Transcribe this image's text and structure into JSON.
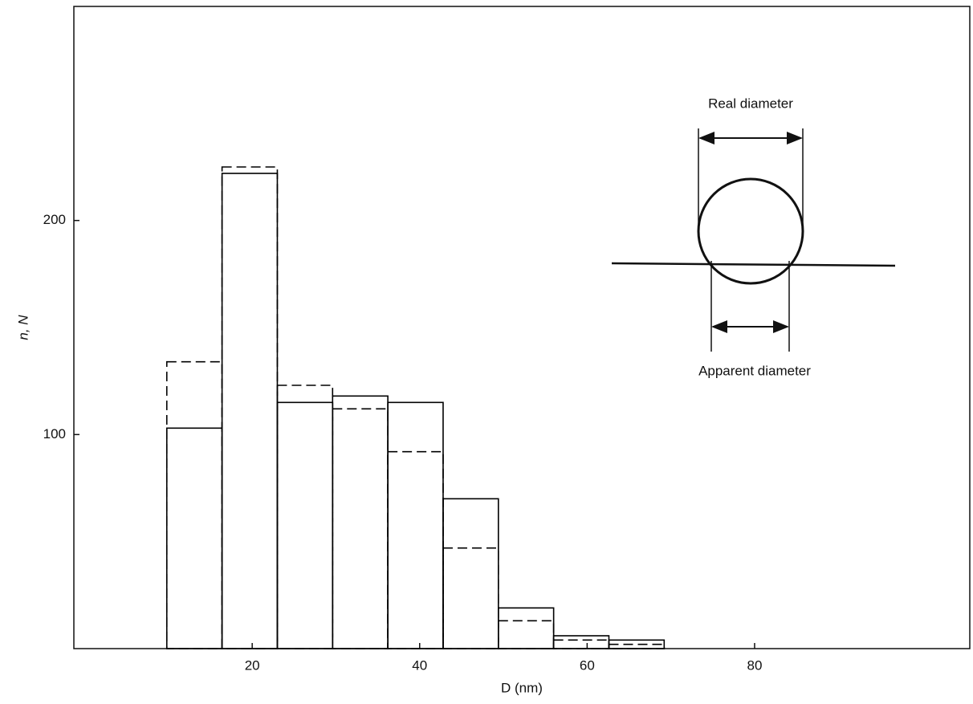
{
  "chart_data": {
    "type": "histogram",
    "xlabel": "D (nm)",
    "ylabel": "n, N",
    "bins": [
      9.8,
      16.4,
      23,
      29.6,
      36.2,
      42.8,
      49.4,
      56,
      62.6,
      69.2
    ],
    "series": [
      {
        "color": "#000000",
        "style": "dashed",
        "values": [
          134,
          225,
          123,
          112,
          92,
          47,
          13,
          4,
          2
        ]
      },
      {
        "color": "#000000",
        "style": "solid",
        "values": [
          103,
          222,
          115,
          118,
          115,
          70,
          19,
          6,
          4
        ]
      }
    ],
    "xlim": [
      -1.3,
      105.7
    ],
    "ylim": [
      0,
      300
    ],
    "xticks": [
      20,
      40,
      60,
      80
    ],
    "yticks": [
      100,
      200
    ],
    "annotations": [
      "Real diameter",
      "Apparent diameter"
    ]
  }
}
